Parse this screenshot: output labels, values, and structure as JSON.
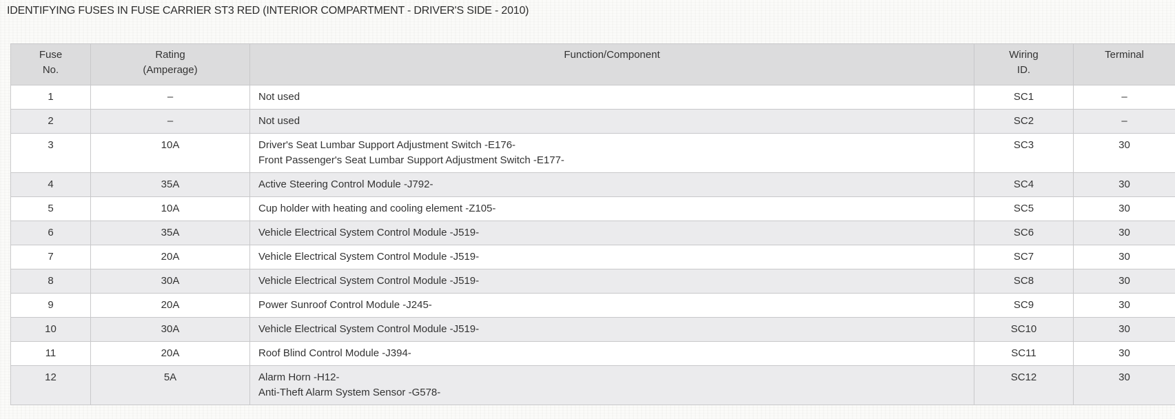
{
  "page": {
    "title": "IDENTIFYING FUSES IN FUSE CARRIER ST3 RED (INTERIOR COMPARTMENT - DRIVER'S SIDE - 2010)"
  },
  "table": {
    "headers": {
      "fuse_no": "Fuse\nNo.",
      "rating": "Rating\n(Amperage)",
      "function": "Function/Component",
      "wiring_id": "Wiring\nID.",
      "terminal": "Terminal"
    },
    "rows": [
      {
        "no": "1",
        "rating": "–",
        "function": [
          "Not used"
        ],
        "wiring_id": "SC1",
        "terminal": "–"
      },
      {
        "no": "2",
        "rating": "–",
        "function": [
          "Not used"
        ],
        "wiring_id": "SC2",
        "terminal": "–"
      },
      {
        "no": "3",
        "rating": "10A",
        "function": [
          "Driver's Seat Lumbar Support Adjustment Switch -E176-",
          "Front Passenger's Seat Lumbar Support Adjustment Switch -E177-"
        ],
        "wiring_id": "SC3",
        "terminal": "30"
      },
      {
        "no": "4",
        "rating": "35A",
        "function": [
          "Active Steering Control Module -J792-"
        ],
        "wiring_id": "SC4",
        "terminal": "30"
      },
      {
        "no": "5",
        "rating": "10A",
        "function": [
          "Cup holder with heating and cooling element -Z105-"
        ],
        "wiring_id": "SC5",
        "terminal": "30"
      },
      {
        "no": "6",
        "rating": "35A",
        "function": [
          "Vehicle Electrical System Control Module -J519-"
        ],
        "wiring_id": "SC6",
        "terminal": "30"
      },
      {
        "no": "7",
        "rating": "20A",
        "function": [
          "Vehicle Electrical System Control Module -J519-"
        ],
        "wiring_id": "SC7",
        "terminal": "30"
      },
      {
        "no": "8",
        "rating": "30A",
        "function": [
          "Vehicle Electrical System Control Module -J519-"
        ],
        "wiring_id": "SC8",
        "terminal": "30"
      },
      {
        "no": "9",
        "rating": "20A",
        "function": [
          "Power Sunroof Control Module -J245-"
        ],
        "wiring_id": "SC9",
        "terminal": "30"
      },
      {
        "no": "10",
        "rating": "30A",
        "function": [
          "Vehicle Electrical System Control Module -J519-"
        ],
        "wiring_id": "SC10",
        "terminal": "30"
      },
      {
        "no": "11",
        "rating": "20A",
        "function": [
          "Roof Blind Control Module -J394-"
        ],
        "wiring_id": "SC11",
        "terminal": "30"
      },
      {
        "no": "12",
        "rating": "5A",
        "function": [
          "Alarm Horn -H12-",
          "Anti-Theft Alarm System Sensor -G578-"
        ],
        "wiring_id": "SC12",
        "terminal": "30"
      }
    ]
  },
  "colors": {
    "header_bg": "#dcdcdd",
    "stripe_bg": "#ebebed",
    "row_bg": "#ffffff",
    "border": "#c8c8ca",
    "text": "#333333"
  }
}
